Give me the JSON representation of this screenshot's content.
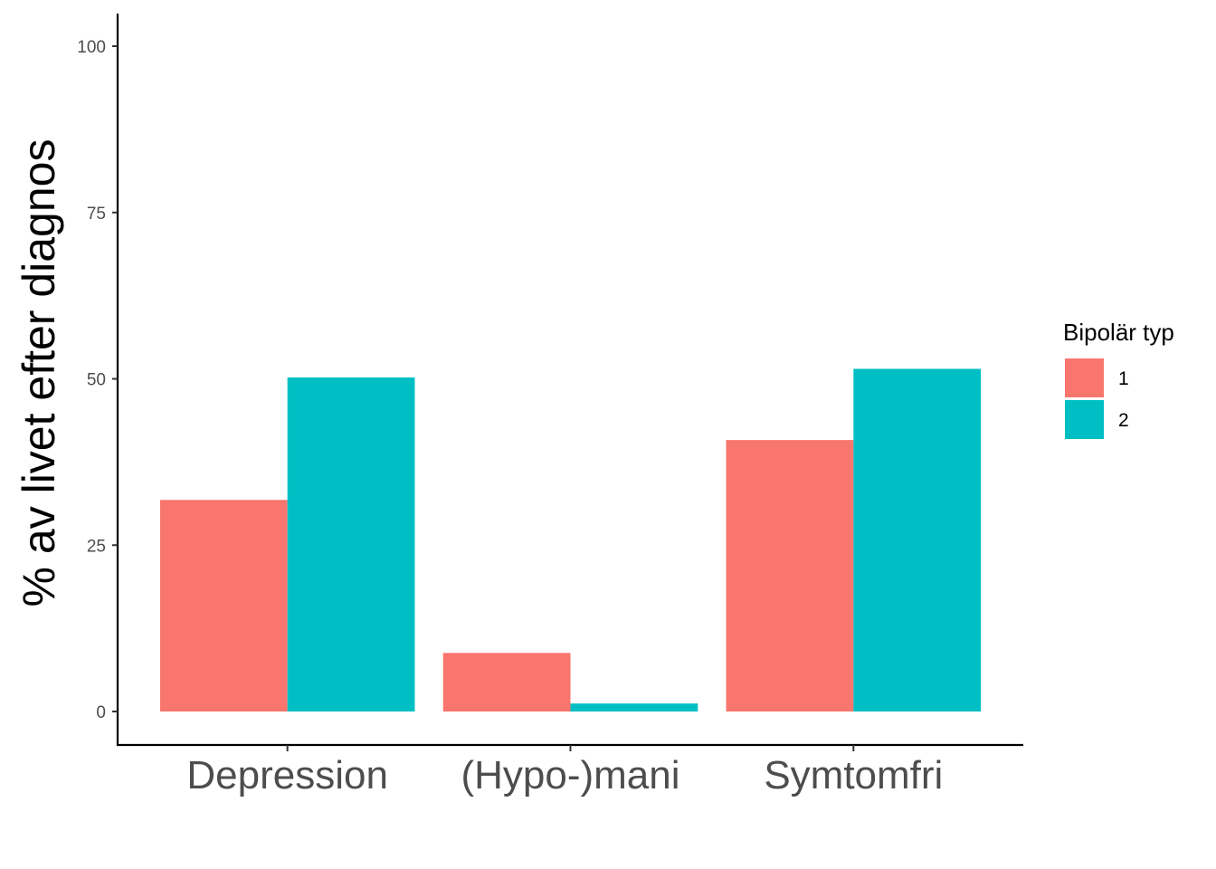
{
  "chart_data": {
    "type": "bar",
    "categories": [
      "Depression",
      "(Hypo-)mani",
      "Symtomfri"
    ],
    "series": [
      {
        "name": "1",
        "values": [
          31.8,
          8.8,
          40.8
        ],
        "color": "#F8766D"
      },
      {
        "name": "2",
        "values": [
          50.2,
          1.2,
          51.5
        ],
        "color": "#00BFC4"
      }
    ],
    "title": "",
    "xlabel": "",
    "ylabel": "% av livet efter diagnos",
    "ylim": [
      0,
      100
    ],
    "yticks": [
      "0",
      "25",
      "50",
      "75",
      "100"
    ],
    "grid": false,
    "legend": {
      "title": "Bipolär typ",
      "placement": "right"
    }
  }
}
